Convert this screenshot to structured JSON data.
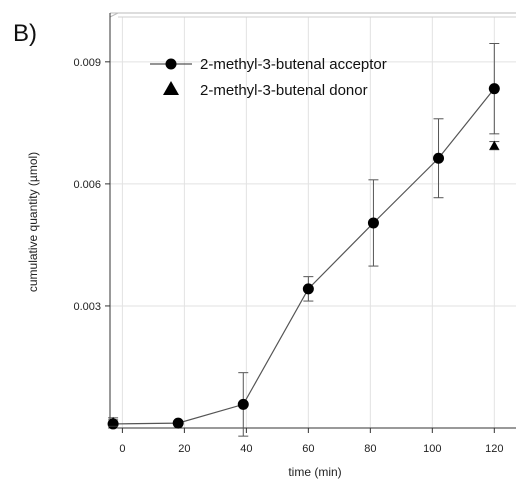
{
  "panel_label": "B)",
  "chart_data": {
    "type": "line",
    "title": "",
    "xlabel": "time (min)",
    "ylabel": "cumulative quantity (µmol)",
    "xlim": [
      -4,
      127
    ],
    "ylim": [
      0,
      0.0102
    ],
    "x_ticks": [
      0,
      20,
      40,
      60,
      80,
      100,
      120
    ],
    "x_tick_labels": [
      "0",
      "20",
      "40",
      "60",
      "80",
      "100",
      "120"
    ],
    "y_ticks": [
      0.003,
      0.006,
      0.009
    ],
    "y_tick_labels": [
      "0.003",
      "0.006",
      "0.009"
    ],
    "grid": true,
    "legend_position": "top-left",
    "series": [
      {
        "name": "2-methyl-3-butenal acceptor",
        "marker": "circle",
        "line": true,
        "color": "#000000",
        "x": [
          -3,
          18,
          39,
          60,
          81,
          102,
          120
        ],
        "y": [
          0.0001,
          0.00012,
          0.00058,
          0.00342,
          0.00504,
          0.00663,
          0.00834
        ],
        "error": [
          0.0001,
          0,
          0.00078,
          0.0003,
          0.00106,
          0.00097,
          0.00111
        ]
      },
      {
        "name": "2-methyl-3-butenal donor",
        "marker": "triangle",
        "line": false,
        "color": "#000000",
        "x": [
          -3,
          120
        ],
        "y": [
          0.00015,
          0.00694
        ],
        "error": [
          0.0001,
          0.0001
        ]
      }
    ]
  }
}
